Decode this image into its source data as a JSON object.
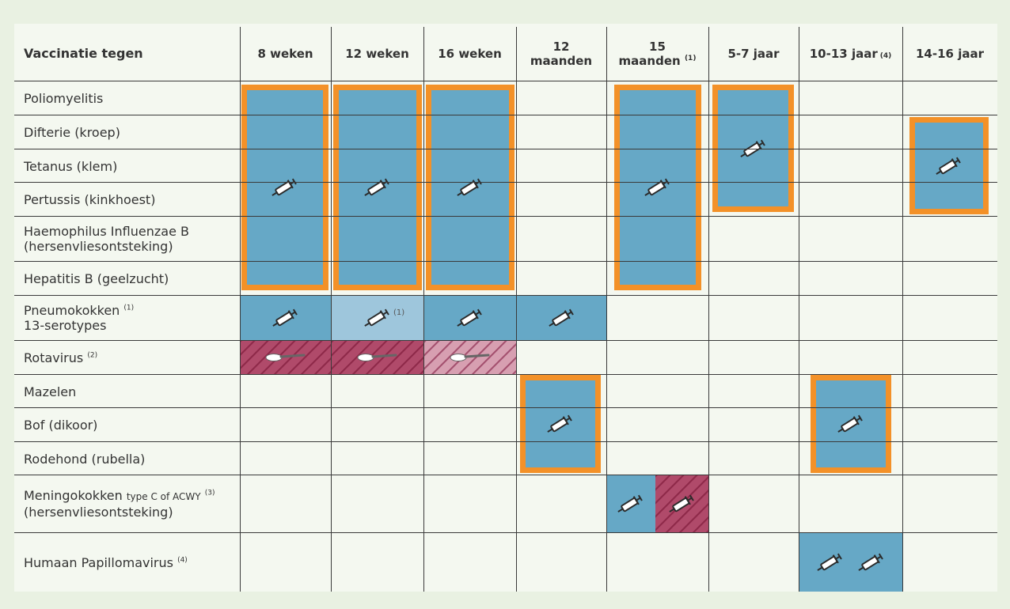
{
  "header": {
    "vaccine_col": "Vaccinatie tegen",
    "ages": [
      {
        "line1": "8 weken",
        "line2": "",
        "sup": ""
      },
      {
        "line1": "12 weken",
        "line2": "",
        "sup": ""
      },
      {
        "line1": "16 weken",
        "line2": "",
        "sup": ""
      },
      {
        "line1": "12",
        "line2": "maanden",
        "sup": ""
      },
      {
        "line1": "15",
        "line2": "maanden",
        "sup": "(1)"
      },
      {
        "line1": "5-7 jaar",
        "line2": "",
        "sup": ""
      },
      {
        "line1": "10-13 jaar",
        "line2": "",
        "sup": "(4)"
      },
      {
        "line1": "14-16 jaar",
        "line2": "",
        "sup": ""
      }
    ]
  },
  "rows": {
    "polio": "Poliomyelitis",
    "difterie": "Difterie (kroep)",
    "tetanus": "Tetanus (klem)",
    "pertussis": "Pertussis (kinkhoest)",
    "hib_1": "Haemophilus Influenzae B",
    "hib_2": "(hersenvliesontsteking)",
    "hepb": "Hepatitis B (geelzucht)",
    "pneumo_1": "Pneumokokken",
    "pneumo_sup": "(1)",
    "pneumo_2": "13-serotypes",
    "rota": "Rotavirus",
    "rota_sup": "(2)",
    "mazelen": "Mazelen",
    "bof": "Bof (dikoor)",
    "rodehond": "Rodehond (rubella)",
    "menin_1": "Meningokokken",
    "menin_small": "type C of ACWY",
    "menin_sup": "(3)",
    "menin_2": "(hersenvliesontsteking)",
    "hpv": "Humaan Papillomavirus",
    "hpv_sup": "(4)"
  },
  "notes": {
    "pneumo_12w": "(1)"
  },
  "icons": {
    "injection": "syringe-icon",
    "oral": "oral-spoon-icon"
  },
  "colors": {
    "vaccine_block": "#66a8c6",
    "vaccine_block_light": "#9ec6dc",
    "combo_border": "#f39128",
    "oral_hatch": "#8f2a4a",
    "oral_hatch_light": "#d79fb1"
  }
}
